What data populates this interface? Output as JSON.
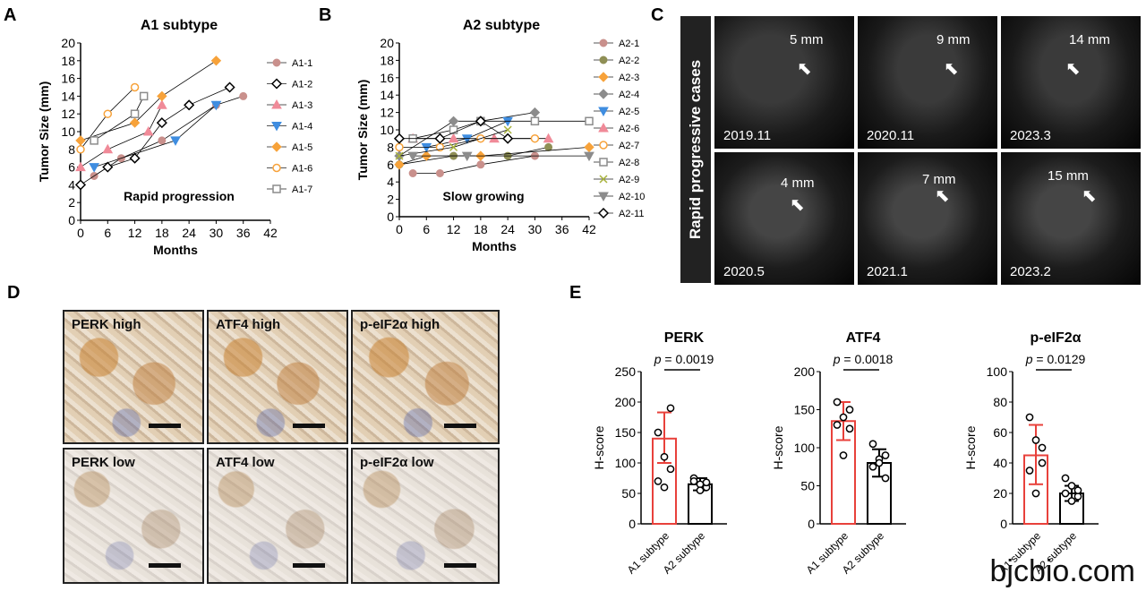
{
  "panel_letters": {
    "A": "A",
    "B": "B",
    "C": "C",
    "D": "D",
    "E": "E"
  },
  "panel_C": {
    "side_label": "Rapid progressive  cases",
    "images": [
      {
        "date": "2019.11",
        "size": "5 mm"
      },
      {
        "date": "2020.11",
        "size": "9 mm"
      },
      {
        "date": "2023.3",
        "size": "14 mm"
      },
      {
        "date": "2020.5",
        "size": "4 mm"
      },
      {
        "date": "2021.1",
        "size": "7 mm"
      },
      {
        "date": "2023.2",
        "size": "15 mm"
      }
    ]
  },
  "panel_D": {
    "images": [
      {
        "label": "PERK high"
      },
      {
        "label": "ATF4 high"
      },
      {
        "label": "p-eIF2α high"
      },
      {
        "label": "PERK low"
      },
      {
        "label": "ATF4 low"
      },
      {
        "label": "p-eIF2α low"
      }
    ]
  },
  "watermark": "bjcbio.com",
  "chart_data": [
    {
      "type": "line",
      "panel": "A",
      "title": "A1 subtype",
      "xlabel": "Months",
      "ylabel": "Tumor Size (mm)",
      "xlim": [
        0,
        42
      ],
      "ylim": [
        0,
        20
      ],
      "xticks": [
        0,
        6,
        12,
        18,
        24,
        30,
        36,
        42
      ],
      "yticks": [
        0,
        2,
        4,
        6,
        8,
        10,
        12,
        14,
        16,
        18,
        20
      ],
      "annotation": "Rapid progression",
      "series": [
        {
          "name": "A1-1",
          "color": "#c9908c",
          "marker": "circle-filled",
          "points": [
            [
              3,
              5
            ],
            [
              9,
              7
            ],
            [
              18,
              9
            ],
            [
              30,
              13
            ],
            [
              36,
              14
            ]
          ]
        },
        {
          "name": "A1-2",
          "color": "#000000",
          "marker": "diamond-open",
          "points": [
            [
              0,
              4
            ],
            [
              6,
              6
            ],
            [
              12,
              7
            ],
            [
              18,
              11
            ],
            [
              24,
              13
            ],
            [
              33,
              15
            ]
          ]
        },
        {
          "name": "A1-3",
          "color": "#f08a98",
          "marker": "triangle-up",
          "points": [
            [
              0,
              6
            ],
            [
              6,
              8
            ],
            [
              15,
              10
            ],
            [
              18,
              13
            ]
          ]
        },
        {
          "name": "A1-4",
          "color": "#3f8de0",
          "marker": "triangle-down",
          "points": [
            [
              3,
              6
            ],
            [
              21,
              9
            ],
            [
              30,
              13
            ]
          ]
        },
        {
          "name": "A1-5",
          "color": "#f7a23a",
          "marker": "diamond-filled",
          "points": [
            [
              0,
              9
            ],
            [
              12,
              11
            ],
            [
              18,
              14
            ],
            [
              30,
              18
            ]
          ]
        },
        {
          "name": "A1-6",
          "color": "#f7a23a",
          "marker": "circle-open",
          "points": [
            [
              0,
              8
            ],
            [
              6,
              12
            ],
            [
              12,
              15
            ]
          ]
        },
        {
          "name": "A1-7",
          "color": "#8c8c8c",
          "marker": "square-open",
          "points": [
            [
              3,
              9
            ],
            [
              12,
              12
            ],
            [
              14,
              14
            ]
          ]
        }
      ]
    },
    {
      "type": "line",
      "panel": "B",
      "title": "A2 subtype",
      "xlabel": "Months",
      "ylabel": "Tumor Size (mm)",
      "xlim": [
        0,
        42
      ],
      "ylim": [
        0,
        20
      ],
      "xticks": [
        0,
        6,
        12,
        18,
        24,
        30,
        36,
        42
      ],
      "yticks": [
        0,
        2,
        4,
        6,
        8,
        10,
        12,
        14,
        16,
        18,
        20
      ],
      "annotation": "Slow growing",
      "series": [
        {
          "name": "A2-1",
          "color": "#c9908c",
          "marker": "circle-filled",
          "points": [
            [
              3,
              5
            ],
            [
              9,
              5
            ],
            [
              18,
              6
            ],
            [
              30,
              7
            ]
          ]
        },
        {
          "name": "A2-2",
          "color": "#8f8f55",
          "marker": "circle-filled",
          "points": [
            [
              0,
              6
            ],
            [
              12,
              7
            ],
            [
              24,
              7
            ],
            [
              33,
              8
            ]
          ]
        },
        {
          "name": "A2-3",
          "color": "#f7a23a",
          "marker": "diamond-filled",
          "points": [
            [
              0,
              6
            ],
            [
              6,
              7
            ],
            [
              18,
              7
            ],
            [
              42,
              8
            ]
          ]
        },
        {
          "name": "A2-4",
          "color": "#8c8c8c",
          "marker": "diamond-filled",
          "points": [
            [
              0,
              7
            ],
            [
              12,
              11
            ],
            [
              18,
              11
            ],
            [
              30,
              12
            ]
          ]
        },
        {
          "name": "A2-5",
          "color": "#3f8de0",
          "marker": "triangle-down",
          "points": [
            [
              6,
              8
            ],
            [
              15,
              9
            ],
            [
              24,
              11
            ]
          ]
        },
        {
          "name": "A2-6",
          "color": "#f08a98",
          "marker": "triangle-up",
          "points": [
            [
              3,
              9
            ],
            [
              12,
              9
            ],
            [
              21,
              9
            ],
            [
              33,
              9
            ]
          ]
        },
        {
          "name": "A2-7",
          "color": "#f7a23a",
          "marker": "circle-open",
          "points": [
            [
              0,
              8
            ],
            [
              9,
              8
            ],
            [
              18,
              9
            ],
            [
              30,
              9
            ]
          ]
        },
        {
          "name": "A2-8",
          "color": "#8c8c8c",
          "marker": "square-open",
          "points": [
            [
              3,
              9
            ],
            [
              12,
              10
            ],
            [
              18,
              11
            ],
            [
              30,
              11
            ],
            [
              42,
              11
            ]
          ]
        },
        {
          "name": "A2-9",
          "color": "#a7b23a",
          "marker": "x",
          "points": [
            [
              0,
              7
            ],
            [
              12,
              8
            ],
            [
              24,
              10
            ]
          ]
        },
        {
          "name": "A2-10",
          "color": "#8c8c8c",
          "marker": "triangle-down",
          "points": [
            [
              3,
              7
            ],
            [
              15,
              7
            ],
            [
              42,
              7
            ]
          ]
        },
        {
          "name": "A2-11",
          "color": "#000000",
          "marker": "diamond-open",
          "points": [
            [
              0,
              9
            ],
            [
              9,
              9
            ],
            [
              18,
              11
            ],
            [
              24,
              9
            ]
          ]
        }
      ]
    },
    {
      "type": "bar",
      "panel": "E",
      "title": "PERK",
      "ylabel": "H-score",
      "categories": [
        "A1 subtype",
        "A2 subtype"
      ],
      "values": [
        140,
        65
      ],
      "errors": [
        [
          100,
          183
        ],
        [
          55,
          75
        ]
      ],
      "ylim": [
        0,
        250
      ],
      "yticks": [
        0,
        50,
        100,
        150,
        200,
        250
      ],
      "p_value": "p = 0.0019",
      "points": [
        [
          150,
          110,
          190,
          70,
          60,
          90
        ],
        [
          75,
          65,
          60,
          70,
          55,
          68
        ]
      ]
    },
    {
      "type": "bar",
      "panel": "E",
      "title": "ATF4",
      "ylabel": "H-score",
      "categories": [
        "A1 subtype",
        "A2 subtype"
      ],
      "values": [
        135,
        80
      ],
      "errors": [
        [
          110,
          160
        ],
        [
          62,
          98
        ]
      ],
      "ylim": [
        0,
        200
      ],
      "yticks": [
        0,
        50,
        100,
        150,
        200
      ],
      "p_value": "p = 0.0018",
      "points": [
        [
          160,
          140,
          150,
          130,
          90,
          125
        ],
        [
          105,
          85,
          60,
          75,
          80,
          90
        ]
      ]
    },
    {
      "type": "bar",
      "panel": "E",
      "title": "p-eIF2α",
      "ylabel": "H-score",
      "categories": [
        "A1 subtype",
        "A2 subtype"
      ],
      "values": [
        45,
        20
      ],
      "errors": [
        [
          26,
          65
        ],
        [
          15,
          25
        ]
      ],
      "ylim": [
        0,
        100
      ],
      "yticks": [
        0,
        20,
        40,
        60,
        80,
        100
      ],
      "p_value": "p = 0.0129",
      "points": [
        [
          70,
          55,
          40,
          35,
          20,
          50
        ],
        [
          30,
          25,
          18,
          20,
          15,
          22
        ]
      ]
    }
  ]
}
